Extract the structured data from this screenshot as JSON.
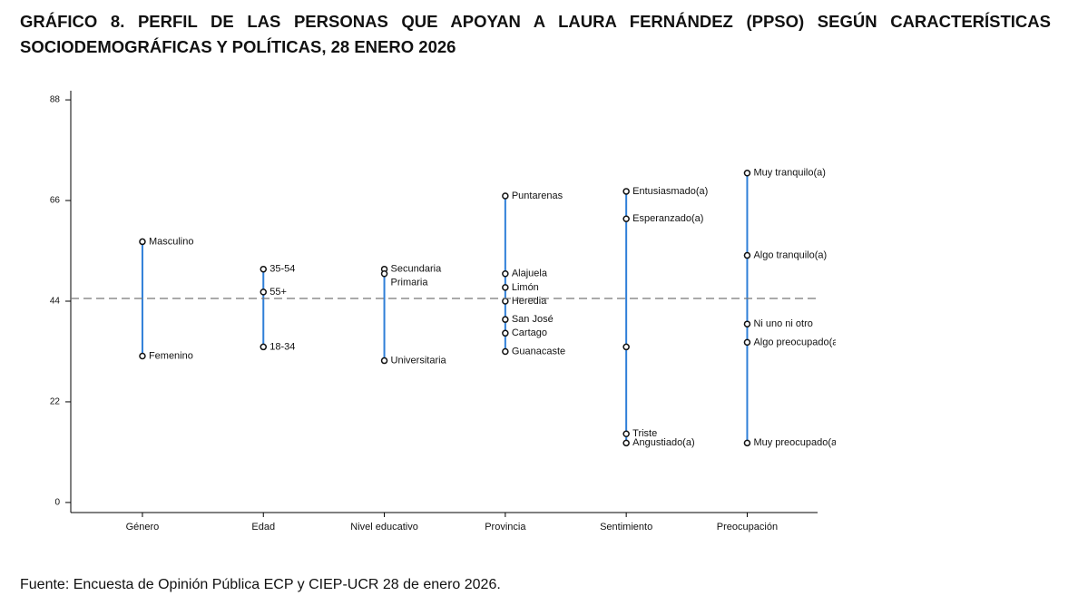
{
  "chart_data": {
    "type": "range-dot",
    "title": "GRÁFICO 8. PERFIL DE LAS PERSONAS QUE APOYAN A LAURA FERNÁNDEZ (PPSO) SEGÚN CARACTERÍSTICAS SOCIODEMOGRÁFICAS Y POLÍTICAS, 28 ENERO 2026",
    "source": "Fuente: Encuesta de Opinión Pública ECP y CIEP-UCR 28 de enero 2026.",
    "categories": [
      "Género",
      "Edad",
      "Nivel educativo",
      "Provincia",
      "Sentimiento",
      "Preocupación"
    ],
    "groups": [
      {
        "labels": [
          "Masculino",
          "Femenino"
        ],
        "values": [
          57,
          32
        ]
      },
      {
        "labels": [
          "35-54",
          "55+",
          "18-34"
        ],
        "values": [
          51,
          46,
          34
        ]
      },
      {
        "labels": [
          "Secundaria",
          "Primaria",
          "Universitaria"
        ],
        "values": [
          51,
          50,
          31
        ]
      },
      {
        "labels": [
          "Puntarenas",
          "Alajuela",
          "Limón",
          "Heredia",
          "San José",
          "Cartago",
          "Guanacaste"
        ],
        "values": [
          67,
          50,
          47,
          44,
          40,
          37,
          33
        ]
      },
      {
        "labels": [
          "Entusiasmado(a)",
          "Esperanzado(a)",
          null,
          "Triste",
          "Angustiado(a)"
        ],
        "values": [
          68,
          62,
          34,
          15,
          13
        ]
      },
      {
        "labels": [
          "Muy tranquilo(a)",
          "Algo tranquilo(a)",
          "Ni uno ni otro",
          "Algo preocupado(a",
          "Muy preocupado(a"
        ],
        "values": [
          72,
          54,
          39,
          35,
          13
        ]
      }
    ],
    "reference_line": 44.6,
    "color": "#2f7fd8",
    "ylim": [
      -2.2,
      90
    ],
    "yticks": [
      0,
      22,
      44,
      66,
      88
    ]
  }
}
